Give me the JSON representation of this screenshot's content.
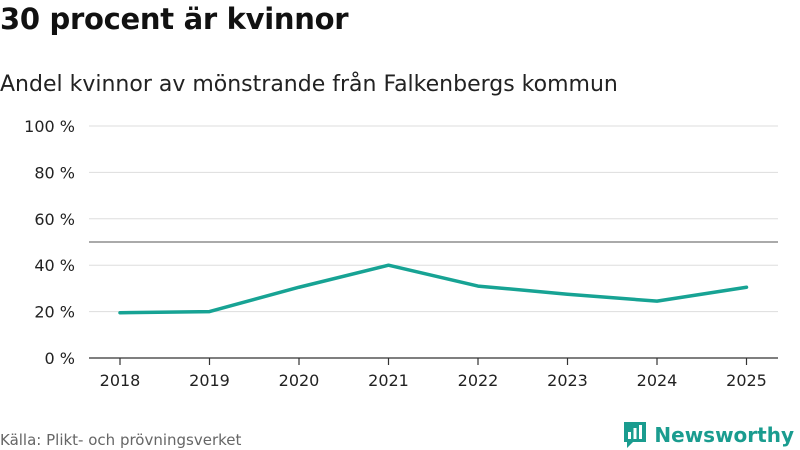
{
  "header": {
    "title": "30 procent är kvinnor",
    "subtitle": "Andel kvinnor av mönstrande från Falkenbergs kommun"
  },
  "footer": {
    "source": "Källa: Plikt- och prövningsverket",
    "brand": "Newsworthy"
  },
  "colors": {
    "line": "#17a394",
    "grid": "#dddddd",
    "reference": "#777777",
    "axis": "#333333",
    "brand": "#1a9c8f"
  },
  "chart_data": {
    "type": "line",
    "title": "30 procent är kvinnor",
    "subtitle": "Andel kvinnor av mönstrande från Falkenbergs kommun",
    "xlabel": "",
    "ylabel": "",
    "categories": [
      "2018",
      "2019",
      "2020",
      "2021",
      "2022",
      "2023",
      "2024",
      "2025"
    ],
    "series": [
      {
        "name": "Andel kvinnor",
        "values": [
          19.5,
          20,
          30.5,
          40,
          31,
          27.5,
          24.5,
          30.5
        ]
      }
    ],
    "ylim": [
      0,
      100
    ],
    "yticks": [
      0,
      20,
      40,
      60,
      80,
      100
    ],
    "ytick_labels": [
      "0 %",
      "20 %",
      "40 %",
      "60 %",
      "80 %",
      "100 %"
    ],
    "reference_line": 50,
    "grid": true,
    "legend": "none"
  }
}
